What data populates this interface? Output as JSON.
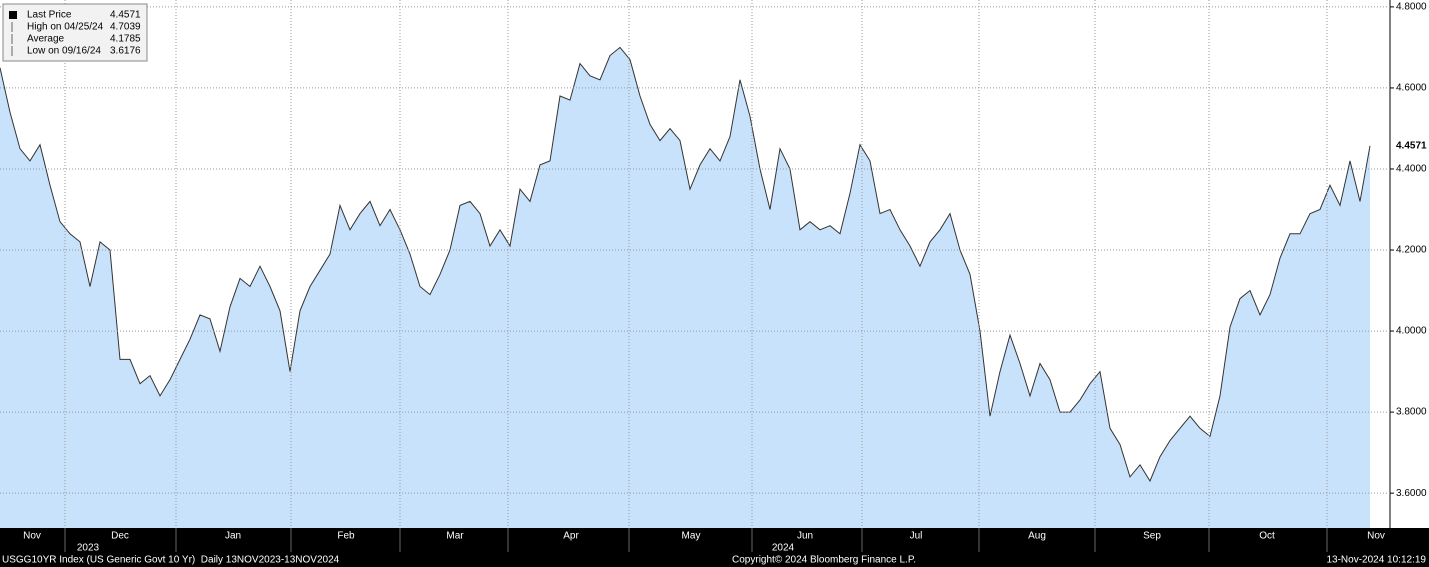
{
  "chart_data": {
    "type": "area",
    "color": "#c9e2fb",
    "line_color": "#333333",
    "values": [
      4.65,
      4.54,
      4.45,
      4.42,
      4.46,
      4.36,
      4.27,
      4.24,
      4.22,
      4.11,
      4.22,
      4.2,
      3.93,
      3.93,
      3.87,
      3.89,
      3.84,
      3.88,
      3.93,
      3.98,
      4.04,
      4.03,
      3.95,
      4.06,
      4.13,
      4.11,
      4.16,
      4.11,
      4.05,
      3.9,
      4.05,
      4.11,
      4.15,
      4.19,
      4.31,
      4.25,
      4.29,
      4.32,
      4.26,
      4.3,
      4.25,
      4.19,
      4.11,
      4.09,
      4.14,
      4.2,
      4.31,
      4.32,
      4.29,
      4.21,
      4.25,
      4.21,
      4.35,
      4.32,
      4.41,
      4.42,
      4.58,
      4.57,
      4.66,
      4.63,
      4.62,
      4.68,
      4.7,
      4.67,
      4.58,
      4.51,
      4.47,
      4.5,
      4.47,
      4.35,
      4.41,
      4.45,
      4.42,
      4.48,
      4.62,
      4.53,
      4.4,
      4.3,
      4.45,
      4.4,
      4.25,
      4.27,
      4.25,
      4.26,
      4.24,
      4.34,
      4.46,
      4.42,
      4.29,
      4.3,
      4.25,
      4.21,
      4.16,
      4.22,
      4.25,
      4.29,
      4.2,
      4.14,
      4.0,
      3.79,
      3.9,
      3.99,
      3.92,
      3.84,
      3.92,
      3.88,
      3.8,
      3.8,
      3.83,
      3.87,
      3.9,
      3.76,
      3.72,
      3.64,
      3.67,
      3.63,
      3.69,
      3.73,
      3.76,
      3.79,
      3.76,
      3.74,
      3.84,
      4.01,
      4.08,
      4.1,
      4.04,
      4.09,
      4.18,
      4.24,
      4.24,
      4.29,
      4.3,
      4.36,
      4.31,
      4.42,
      4.32,
      4.4571
    ],
    "xlim": [
      0,
      139
    ],
    "xticks": [
      6.5,
      17.6,
      29.1,
      40,
      50.8,
      62.9,
      75.2,
      86.2,
      97.9,
      109.5,
      120.9,
      132.7
    ],
    "xlabels": [
      {
        "value": 3.2,
        "label": "Nov"
      },
      {
        "value": 12,
        "label": "Dec"
      },
      {
        "value": 23.3,
        "label": "Jan"
      },
      {
        "value": 34.6,
        "label": "Feb"
      },
      {
        "value": 45.5,
        "label": "Mar"
      },
      {
        "value": 57.1,
        "label": "Apr"
      },
      {
        "value": 69.1,
        "label": "May"
      },
      {
        "value": 80.5,
        "label": "Jun"
      },
      {
        "value": 91.6,
        "label": "Jul"
      },
      {
        "value": 103.7,
        "label": "Aug"
      },
      {
        "value": 115.2,
        "label": "Sep"
      },
      {
        "value": 126.7,
        "label": "Oct"
      },
      {
        "value": 137.6,
        "label": "Nov"
      }
    ],
    "year_labels": [
      {
        "value": 8.8,
        "label": "2023"
      },
      {
        "value": 78.3,
        "label": "2024"
      }
    ],
    "ylim": [
      3.514,
      4.817
    ],
    "yticks": [
      {
        "value": 3.6,
        "label": "3.6000"
      },
      {
        "value": 3.8,
        "label": "3.8000"
      },
      {
        "value": 4.0,
        "label": "4.0000"
      },
      {
        "value": 4.2,
        "label": "4.2000"
      },
      {
        "value": 4.4,
        "label": "4.4000"
      },
      {
        "value": 4.6,
        "label": "4.6000"
      },
      {
        "value": 4.8,
        "label": "4.8000"
      }
    ],
    "grid": true,
    "legend": [
      {
        "label": "Last Price",
        "value": "4.4571"
      },
      {
        "label": "High on 04/25/24",
        "value": "4.7039"
      },
      {
        "label": "Average",
        "value": "4.1785"
      },
      {
        "label": "Low on 09/16/24",
        "value": "3.6176"
      }
    ]
  },
  "footer": {
    "left": "USGG10YR Index (US Generic Govt 10 Yr)  Daily 13NOV2023-13NOV2024",
    "center": "Copyright© 2024 Bloomberg Finance L.P.",
    "right": "13-Nov-2024 10:12:19"
  }
}
